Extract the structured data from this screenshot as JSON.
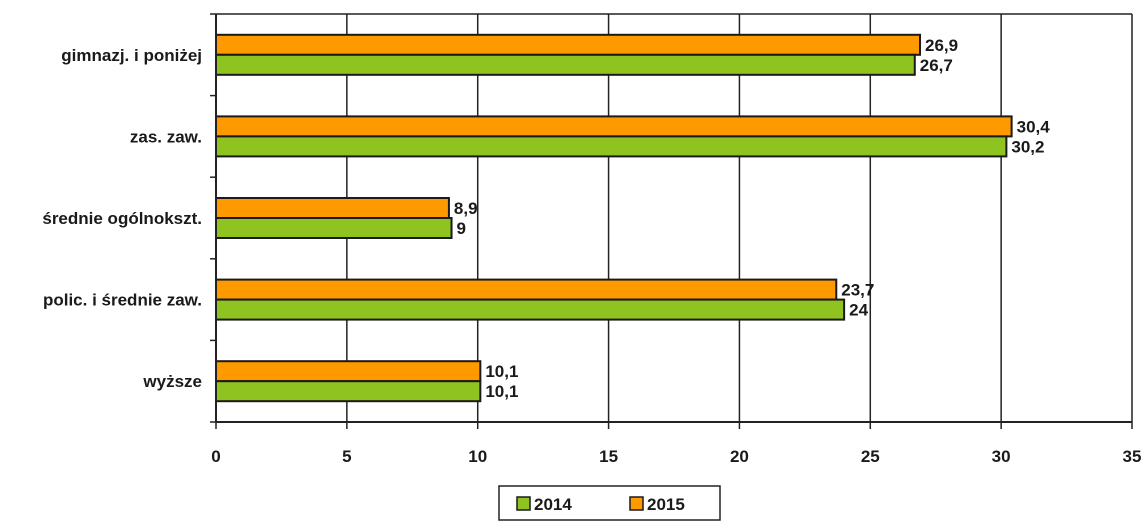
{
  "chart_data": {
    "type": "bar",
    "orientation": "horizontal",
    "categories": [
      "gimnazj. i poniżej",
      "zas. zaw.",
      "średnie ogólnokszt.",
      "polic. i średnie zaw.",
      "wyższe"
    ],
    "series": [
      {
        "name": "2015",
        "color": "#ff9900",
        "values": [
          26.9,
          30.4,
          8.9,
          23.7,
          10.1
        ],
        "labels": [
          "26,9",
          "30,4",
          "8,9",
          "23,7",
          "10,1"
        ]
      },
      {
        "name": "2014",
        "color": "#8fc31f",
        "values": [
          26.7,
          30.2,
          9,
          24,
          10.1
        ],
        "labels": [
          "26,7",
          "30,2",
          "9",
          "24",
          "10,1"
        ]
      }
    ],
    "xlim": [
      0,
      35
    ],
    "xticks": [
      0,
      5,
      10,
      15,
      20,
      25,
      30,
      35
    ],
    "xtick_labels": [
      "0",
      "5",
      "10",
      "15",
      "20",
      "25",
      "30",
      "35"
    ],
    "grid": "vertical",
    "legend": {
      "placement": "bottom",
      "entries": [
        "2014",
        "2015"
      ]
    },
    "title": "",
    "xlabel": "",
    "ylabel": ""
  }
}
